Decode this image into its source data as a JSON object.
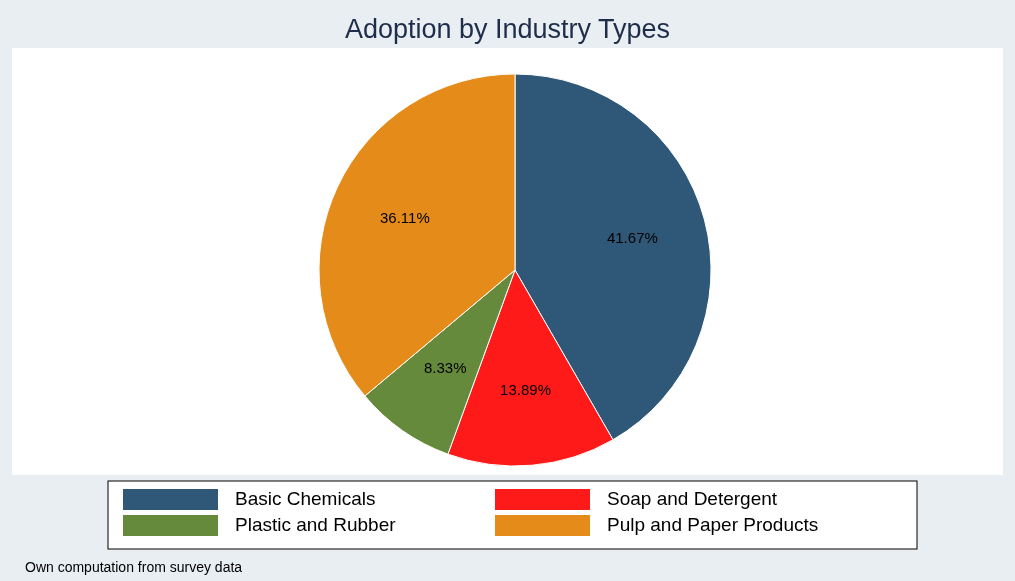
{
  "chart_data": {
    "type": "pie",
    "title": "Adoption by Industry Types",
    "categories": [
      "Basic Chemicals",
      "Soap and Detergent",
      "Plastic and Rubber",
      "Pulp and Paper Products"
    ],
    "values": [
      41.67,
      13.89,
      8.33,
      36.11
    ],
    "colors": [
      "#2f5878",
      "#ff1a1a",
      "#668a3c",
      "#e58b1a"
    ],
    "value_labels": [
      "41.67%",
      "13.89%",
      "8.33%",
      "36.11%"
    ],
    "legend": "bottom",
    "annotations": [
      "Own computation from survey data"
    ]
  }
}
